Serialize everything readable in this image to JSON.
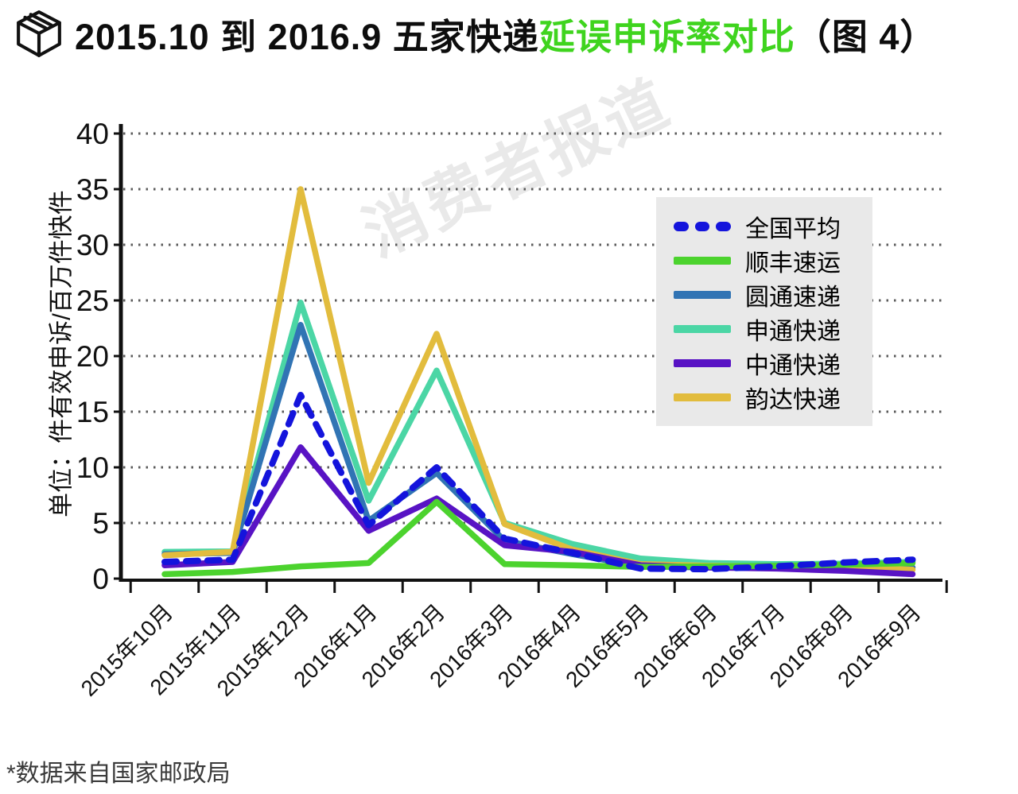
{
  "header": {
    "title_black_1": "2015.10 到 2016.9 五家快递",
    "title_green": "延误申诉率对比",
    "title_black_2": "（图 4）"
  },
  "watermark": "消费者报道",
  "footer": {
    "note": "*数据来自国家邮政局"
  },
  "colors": {
    "title_green": "#3FD41E",
    "axis": "#111111",
    "grid": "#5a5a5a",
    "legend_bg": "#E9E9E9",
    "watermark": "#DCDCDC"
  },
  "chart_data": {
    "type": "line",
    "title": "2015.10 到 2016.9 五家快递延误申诉率对比（图 4）",
    "ylabel": "单位：件有效申诉/百万件快件",
    "xlabel": "",
    "ylim": [
      0,
      40
    ],
    "yticks": [
      0,
      5,
      10,
      15,
      20,
      25,
      30,
      35,
      40
    ],
    "grid": "dotted horizontal",
    "legend_position": "upper right",
    "categories": [
      "2015年10月",
      "2015年11月",
      "2015年12月",
      "2016年1月",
      "2016年2月",
      "2016年3月",
      "2016年4月",
      "2016年5月",
      "2016年6月",
      "2016年7月",
      "2016年8月",
      "2016年9月"
    ],
    "series": [
      {
        "name": "全国平均",
        "key": "national-average",
        "color": "#1414DC",
        "dashed": true,
        "values": [
          1.5,
          1.7,
          16.5,
          4.8,
          10.0,
          3.6,
          2.3,
          0.9,
          0.85,
          1.1,
          1.45,
          1.7
        ]
      },
      {
        "name": "顺丰速运",
        "key": "sf-express",
        "color": "#4CD32E",
        "dashed": false,
        "values": [
          0.4,
          0.6,
          1.1,
          1.4,
          6.9,
          1.3,
          1.2,
          1.05,
          1.1,
          1.15,
          1.25,
          1.4
        ]
      },
      {
        "name": "圆通速递",
        "key": "yto-express",
        "color": "#3174B4",
        "dashed": false,
        "values": [
          2.2,
          2.3,
          22.8,
          5.2,
          9.5,
          3.4,
          2.2,
          1.1,
          1.0,
          1.0,
          1.0,
          1.0
        ]
      },
      {
        "name": "申通快递",
        "key": "sto-express",
        "color": "#4BD6A5",
        "dashed": false,
        "values": [
          2.4,
          2.45,
          24.8,
          7.0,
          18.7,
          5.0,
          3.1,
          1.8,
          1.4,
          1.3,
          1.35,
          1.5
        ]
      },
      {
        "name": "中通快递",
        "key": "zto-express",
        "color": "#5813C4",
        "dashed": false,
        "values": [
          1.2,
          1.5,
          11.8,
          4.3,
          7.2,
          3.0,
          2.4,
          1.2,
          1.0,
          0.9,
          0.7,
          0.4
        ]
      },
      {
        "name": "韵达快递",
        "key": "yunda-express",
        "color": "#E2BC3D",
        "dashed": false,
        "values": [
          2.1,
          2.4,
          35.0,
          8.6,
          22.0,
          4.9,
          2.6,
          1.3,
          1.15,
          1.1,
          1.0,
          0.8
        ]
      }
    ]
  }
}
